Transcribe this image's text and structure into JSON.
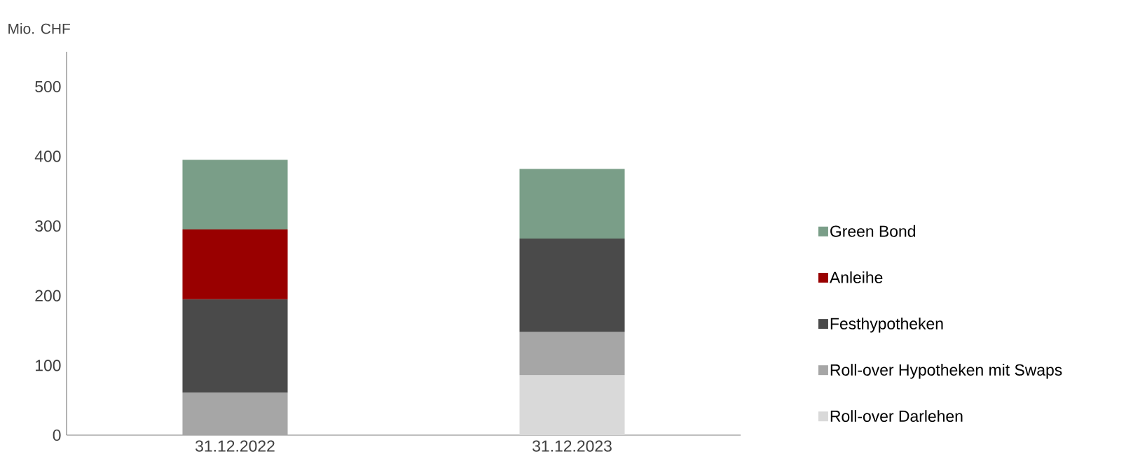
{
  "chart_data": {
    "type": "bar",
    "stacked": true,
    "ylabel": "Mio. CHF",
    "categories": [
      "31.12.2022",
      "31.12.2023"
    ],
    "series": [
      {
        "name": "Roll-over Darlehen",
        "color": "#d9d9d9",
        "values": [
          null,
          86
        ]
      },
      {
        "name": "Roll-over Hypotheken mit Swaps",
        "color": "#a6a6a6",
        "values": [
          61,
          62
        ]
      },
      {
        "name": "Festhypotheken",
        "color": "#4a4a4a",
        "values": [
          134,
          134
        ]
      },
      {
        "name": "Anleihe",
        "color": "#990000",
        "values": [
          100,
          null
        ]
      },
      {
        "name": "Green Bond",
        "color": "#7a9e88",
        "values": [
          100,
          100
        ]
      }
    ],
    "ylim": [
      0,
      550
    ],
    "yticks": [
      0,
      100,
      200,
      300,
      400,
      500
    ],
    "grid": false,
    "legend": "right"
  }
}
